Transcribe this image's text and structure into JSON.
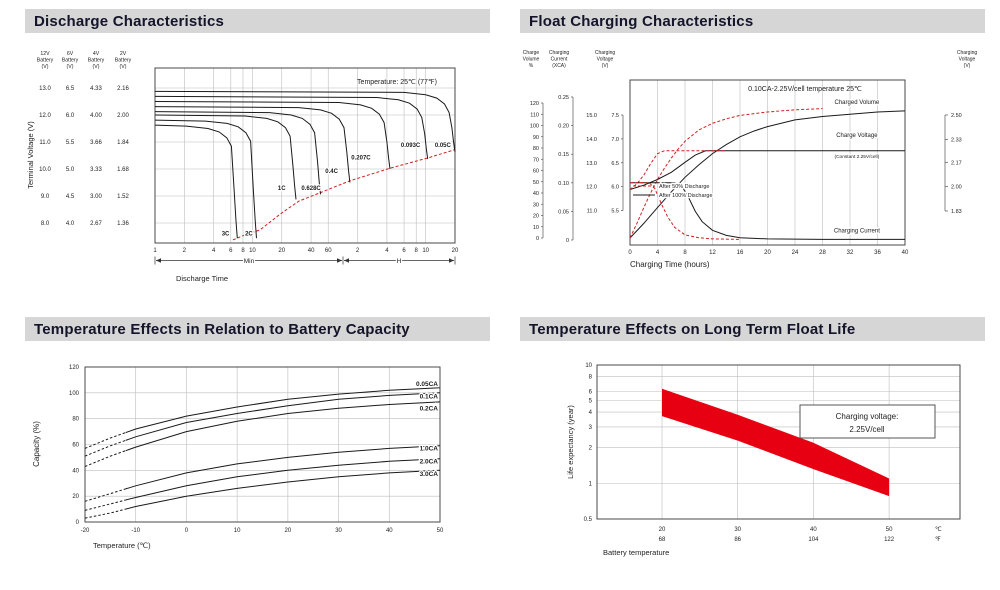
{
  "titles": {
    "discharge": "Discharge Characteristics",
    "float_charging": "Float Charging Characteristics",
    "temp_capacity": "Temperature Effects in Relation to Battery Capacity",
    "float_life": "Temperature Effects on Long Term Float Life"
  },
  "colors": {
    "accent_red": "#d21f1f",
    "curve": "#1a1a1a",
    "band_red": "#e60012",
    "grid": "#bdbdbd",
    "frame": "#4a4a4a",
    "title_bg": "#d6d6d6"
  },
  "chart_data": [
    {
      "id": "discharge_characteristics",
      "type": "line",
      "title": "Discharge Characteristics",
      "annotation": "Temperature: 25℃ (77℉)",
      "x_axis": {
        "label": "Discharge Time",
        "scale": "log",
        "minute_ticks": [
          1,
          2,
          4,
          6,
          8,
          10,
          20,
          40,
          60
        ],
        "hour_ticks": [
          2,
          4,
          6,
          8,
          10,
          20
        ],
        "segments": [
          "Min",
          "H"
        ]
      },
      "y_axis": {
        "label": "Terminal Voltage (V)",
        "gridlines_2v": [
          2.16,
          2.0,
          1.84,
          1.68,
          1.52,
          1.36
        ],
        "columns": [
          {
            "header": [
              "12V",
              "Battery",
              "(V)"
            ],
            "values": [
              "13.0",
              "12.0",
              "11.0",
              "10.0",
              "9.0",
              "8.0"
            ]
          },
          {
            "header": [
              "6V",
              "Battery",
              "(V)"
            ],
            "values": [
              "6.5",
              "6.0",
              "5.5",
              "5.0",
              "4.5",
              "4.0"
            ]
          },
          {
            "header": [
              "4V",
              "Battery",
              "(V)"
            ],
            "values": [
              "4.33",
              "4.00",
              "3.66",
              "3.33",
              "3.00",
              "2.67"
            ]
          },
          {
            "header": [
              "2V",
              "Battery",
              "(V)"
            ],
            "values": [
              "2.16",
              "2.00",
              "1.84",
              "1.68",
              "1.52",
              "1.36"
            ]
          }
        ]
      },
      "series": [
        {
          "label": "3C",
          "end_time_min": 7,
          "plateau_v": 1.94,
          "cutoff_v": 1.27,
          "label_at": [
            5.3,
            1.285
          ]
        },
        {
          "label": "2C",
          "end_time_min": 11,
          "plateau_v": 1.97,
          "cutoff_v": 1.27,
          "label_at": [
            9.2,
            1.285
          ]
        },
        {
          "label": "1C",
          "end_time_min": 28,
          "plateau_v": 2.0,
          "cutoff_v": 1.5,
          "label_at": [
            20,
            1.555
          ]
        },
        {
          "label": "0.628C",
          "end_time_min": 50,
          "plateau_v": 2.02,
          "cutoff_v": 1.53,
          "label_at": [
            40,
            1.555
          ]
        },
        {
          "label": "0.4C",
          "end_time_min": 100,
          "plateau_v": 2.05,
          "cutoff_v": 1.6,
          "label_at": [
            65,
            1.655
          ]
        },
        {
          "label": "0.207C",
          "end_time_min": 258,
          "plateau_v": 2.08,
          "cutoff_v": 1.68,
          "label_at": [
            130,
            1.735
          ]
        },
        {
          "label": "0.093C",
          "end_time_min": 630,
          "plateau_v": 2.11,
          "cutoff_v": 1.74,
          "label_at": [
            420,
            1.81
          ]
        },
        {
          "label": "0.05C",
          "end_time_min": 1200,
          "plateau_v": 2.14,
          "cutoff_v": 1.78,
          "label_at": [
            900,
            1.81
          ]
        }
      ],
      "envelope_dashed": [
        [
          6.3,
          1.26
        ],
        [
          8,
          1.285
        ],
        [
          12,
          1.32
        ],
        [
          20,
          1.42
        ],
        [
          30,
          1.49
        ],
        [
          50,
          1.54
        ],
        [
          100,
          1.61
        ],
        [
          258,
          1.685
        ],
        [
          630,
          1.745
        ],
        [
          1200,
          1.795
        ]
      ]
    },
    {
      "id": "float_charging_characteristics",
      "type": "line",
      "title": "Float Charging Characteristics",
      "annotation": "0.10CA-2.25V/cell  temperature 25℃",
      "x_axis": {
        "label": "Charging Time (hours)",
        "ticks": [
          0,
          4,
          8,
          12,
          16,
          20,
          24,
          28,
          32,
          36,
          40
        ]
      },
      "left_axes": [
        {
          "header": [
            "Charge",
            "Volume",
            "%"
          ],
          "ticks": [
            "120",
            "110",
            "100",
            "90",
            "80",
            "70",
            "60",
            "50",
            "40",
            "30",
            "20",
            "10",
            "0"
          ]
        },
        {
          "header": [
            "Charging",
            "Current",
            "(XCA)"
          ],
          "ticks": [
            "0.25",
            "0.20",
            "0.15",
            "0.10",
            "0.05",
            "0"
          ]
        },
        {
          "header": [
            "Charging",
            "Voltage",
            "(V)"
          ],
          "ticks_12v": [
            "15.0",
            "14.0",
            "13.0",
            "12.0",
            "11.0"
          ],
          "ticks_6v": [
            "7.5",
            "7.0",
            "6.5",
            "6.0",
            "5.5"
          ]
        }
      ],
      "right_axis": {
        "header": [
          "Charging",
          "Voltage",
          "(V)"
        ],
        "ticks": [
          "2.50",
          "2.33",
          "2.17",
          "2.00",
          "1.83"
        ]
      },
      "legend": [
        {
          "label": "After  50% Discharge",
          "style": "dashed-red"
        },
        {
          "label": "After 100% Discharge",
          "style": "solid-black"
        }
      ],
      "curve_labels": [
        {
          "text": "Charged Volume",
          "axis": "volume",
          "at_hours": 33,
          "value": 119,
          "small": false
        },
        {
          "text": "Charge Voltage",
          "axis": "voltage",
          "at_hours": 33,
          "value": 2.345,
          "small": false
        },
        {
          "text": "(Constant 2.25V/cell)",
          "axis": "voltage",
          "at_hours": 33,
          "value": 2.2,
          "small": true
        },
        {
          "text": "Charging Current",
          "axis": "current",
          "at_hours": 33,
          "value": 0.013,
          "small": false
        }
      ],
      "series": [
        {
          "name": "Charged volume after 100% discharge",
          "axis": "volume",
          "style": "solid",
          "points": [
            [
              0,
              0
            ],
            [
              2,
              13
            ],
            [
              4,
              27
            ],
            [
              6,
              41
            ],
            [
              8,
              54
            ],
            [
              10,
              65
            ],
            [
              12,
              75
            ],
            [
              14,
              83
            ],
            [
              16,
              90
            ],
            [
              18,
              95
            ],
            [
              20,
              99
            ],
            [
              24,
              105
            ],
            [
              28,
              108
            ],
            [
              32,
              110
            ],
            [
              36,
              112
            ],
            [
              40,
              113
            ]
          ]
        },
        {
          "name": "Charged volume after 50% discharge",
          "axis": "volume",
          "style": "dashed",
          "points": [
            [
              0,
              0
            ],
            [
              1,
              13
            ],
            [
              2,
              27
            ],
            [
              3,
              40
            ],
            [
              4,
              52
            ],
            [
              5,
              62
            ],
            [
              6,
              71
            ],
            [
              7,
              79
            ],
            [
              8,
              86
            ],
            [
              10,
              96
            ],
            [
              12,
              102
            ],
            [
              14,
              106
            ],
            [
              16,
              109
            ],
            [
              20,
              112
            ],
            [
              24,
              114
            ],
            [
              28,
              115
            ]
          ]
        },
        {
          "name": "Charge voltage after 100% discharge",
          "axis": "voltage",
          "style": "solid",
          "points": [
            [
              0,
              1.98
            ],
            [
              2,
              2.01
            ],
            [
              4,
              2.05
            ],
            [
              6,
              2.1
            ],
            [
              8,
              2.17
            ],
            [
              9.5,
              2.22
            ],
            [
              11,
              2.25
            ],
            [
              40,
              2.25
            ]
          ]
        },
        {
          "name": "Charge voltage after 50% discharge",
          "axis": "voltage",
          "style": "dashed",
          "points": [
            [
              0,
              1.98
            ],
            [
              1,
              2.02
            ],
            [
              2,
              2.08
            ],
            [
              3,
              2.16
            ],
            [
              4,
              2.23
            ],
            [
              5,
              2.25
            ],
            [
              14,
              2.25
            ]
          ]
        },
        {
          "name": "Charging current after 100% discharge",
          "axis": "current",
          "style": "solid",
          "points": [
            [
              0,
              0.1
            ],
            [
              6.5,
              0.1
            ],
            [
              7.5,
              0.095
            ],
            [
              8.5,
              0.075
            ],
            [
              9.5,
              0.05
            ],
            [
              10.5,
              0.032
            ],
            [
              12,
              0.017
            ],
            [
              14,
              0.008
            ],
            [
              16,
              0.004
            ],
            [
              20,
              0.002
            ],
            [
              28,
              0.001
            ],
            [
              40,
              0.001
            ]
          ]
        },
        {
          "name": "Charging current after 50% discharge",
          "axis": "current",
          "style": "dashed",
          "points": [
            [
              0,
              0.1
            ],
            [
              2.8,
              0.1
            ],
            [
              3.6,
              0.09
            ],
            [
              4.5,
              0.065
            ],
            [
              5.5,
              0.04
            ],
            [
              6.5,
              0.022
            ],
            [
              8,
              0.009
            ],
            [
              10,
              0.004
            ],
            [
              12,
              0.002
            ],
            [
              16,
              0.001
            ]
          ]
        }
      ]
    },
    {
      "id": "temperature_effects_battery_capacity",
      "type": "line",
      "title": "Temperature Effects in Relation to Battery Capacity",
      "x_axis": {
        "label": "Temperature (℃)",
        "ticks": [
          -20,
          -10,
          0,
          10,
          20,
          30,
          40,
          50
        ]
      },
      "y_axis": {
        "label": "Capacity (%)",
        "ticks": [
          0,
          20,
          40,
          60,
          80,
          100,
          120
        ]
      },
      "dashed_below_c": -12,
      "series": [
        {
          "label": "0.05CA",
          "label_v": 107,
          "points": [
            [
              -20,
              57
            ],
            [
              -15,
              65
            ],
            [
              -10,
              72
            ],
            [
              0,
              82
            ],
            [
              10,
              89
            ],
            [
              20,
              95
            ],
            [
              30,
              99
            ],
            [
              40,
              102
            ],
            [
              50,
              104
            ]
          ]
        },
        {
          "label": "0.1CA",
          "label_v": 97,
          "points": [
            [
              -20,
              51
            ],
            [
              -15,
              59
            ],
            [
              -10,
              66
            ],
            [
              0,
              77
            ],
            [
              10,
              84
            ],
            [
              20,
              90
            ],
            [
              30,
              95
            ],
            [
              40,
              98
            ],
            [
              50,
              100
            ]
          ]
        },
        {
          "label": "0.2CA",
          "label_v": 88,
          "points": [
            [
              -20,
              43
            ],
            [
              -15,
              51
            ],
            [
              -10,
              58
            ],
            [
              0,
              70
            ],
            [
              10,
              78
            ],
            [
              20,
              84
            ],
            [
              30,
              88
            ],
            [
              40,
              91
            ],
            [
              50,
              93
            ]
          ]
        },
        {
          "label": "1.0CA",
          "label_v": 57,
          "points": [
            [
              -20,
              16
            ],
            [
              -15,
              22
            ],
            [
              -10,
              28
            ],
            [
              0,
              38
            ],
            [
              10,
              45
            ],
            [
              20,
              50
            ],
            [
              30,
              54
            ],
            [
              40,
              57
            ],
            [
              50,
              59
            ]
          ]
        },
        {
          "label": "2.0CA",
          "label_v": 47,
          "points": [
            [
              -20,
              9
            ],
            [
              -15,
              14
            ],
            [
              -10,
              19
            ],
            [
              0,
              28
            ],
            [
              10,
              35
            ],
            [
              20,
              40
            ],
            [
              30,
              44
            ],
            [
              40,
              47
            ],
            [
              50,
              49
            ]
          ]
        },
        {
          "label": "3.0CA",
          "label_v": 37,
          "points": [
            [
              -20,
              3
            ],
            [
              -15,
              7
            ],
            [
              -10,
              12
            ],
            [
              0,
              20
            ],
            [
              10,
              26
            ],
            [
              20,
              31
            ],
            [
              30,
              35
            ],
            [
              40,
              38
            ],
            [
              50,
              40
            ]
          ]
        }
      ]
    },
    {
      "id": "temperature_effects_float_life",
      "type": "area",
      "title": "Temperature Effects on Long Term Float Life",
      "annotation": [
        "Charging voltage:",
        "2.25V/cell"
      ],
      "x_axis": {
        "label": "Battery temperature",
        "ticks_c": [
          20,
          30,
          40,
          50
        ],
        "ticks_f": [
          68,
          86,
          104,
          122
        ],
        "unit_c": "℃",
        "unit_f": "℉"
      },
      "y_axis": {
        "label": "Life expectancy (year)",
        "scale": "log",
        "ticks": [
          10,
          8,
          6,
          5,
          4,
          3,
          2,
          1,
          0.5
        ]
      },
      "band": {
        "top": [
          [
            20,
            6.3
          ],
          [
            30,
            3.8
          ],
          [
            40,
            2.2
          ],
          [
            50,
            1.1
          ]
        ],
        "bottom": [
          [
            20,
            3.7
          ],
          [
            30,
            2.3
          ],
          [
            40,
            1.32
          ],
          [
            50,
            0.78
          ]
        ]
      }
    }
  ]
}
